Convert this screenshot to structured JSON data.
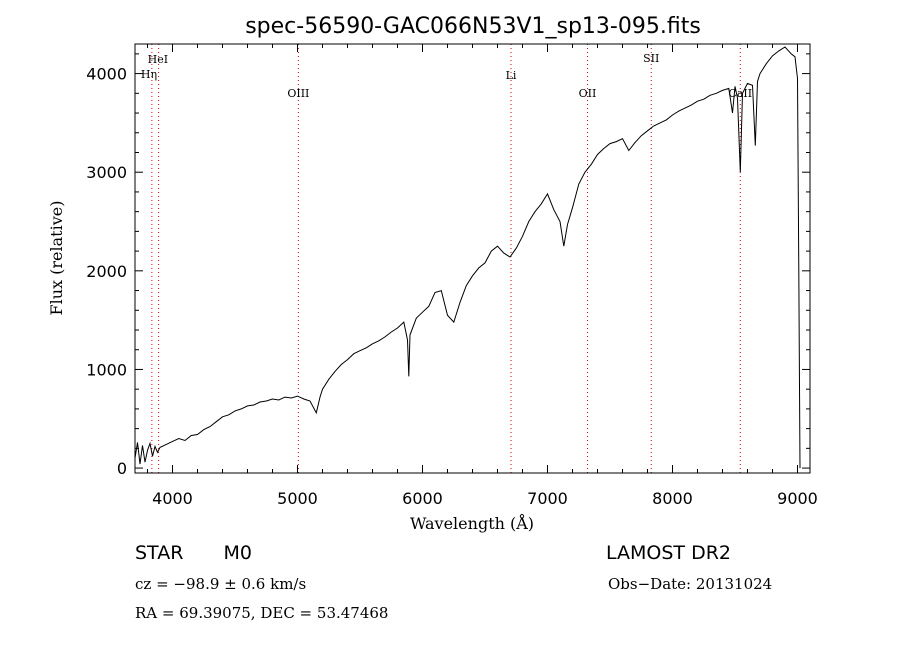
{
  "chart_data": {
    "type": "line",
    "title": "spec-56590-GAC066N53V1_sp13-095.fits",
    "xlabel": "Wavelength (Å)",
    "ylabel": "Flux (relative)",
    "xlim": [
      3700,
      9100
    ],
    "ylim": [
      -50,
      4300
    ],
    "xticks": [
      4000,
      5000,
      6000,
      7000,
      8000,
      9000
    ],
    "yticks": [
      0,
      1000,
      2000,
      3000,
      4000
    ],
    "grid": false,
    "line_color": "#000000",
    "marker_color": "#cc0000",
    "spectral_lines": [
      {
        "name": "HeI",
        "x": 3889
      },
      {
        "name": "Hη",
        "x": 3835
      },
      {
        "name": "OIII",
        "x": 5007
      },
      {
        "name": "Li",
        "x": 6708
      },
      {
        "name": "OII",
        "x": 7320
      },
      {
        "name": "SII",
        "x": 7830
      },
      {
        "name": "CaII",
        "x": 8542
      }
    ],
    "series": [
      {
        "values": [
          [
            3700,
            100
          ],
          [
            3720,
            260
          ],
          [
            3740,
            40
          ],
          [
            3760,
            230
          ],
          [
            3780,
            60
          ],
          [
            3800,
            180
          ],
          [
            3820,
            250
          ],
          [
            3840,
            120
          ],
          [
            3860,
            220
          ],
          [
            3880,
            160
          ],
          [
            3900,
            210
          ],
          [
            3950,
            240
          ],
          [
            4000,
            270
          ],
          [
            4050,
            300
          ],
          [
            4100,
            280
          ],
          [
            4150,
            330
          ],
          [
            4200,
            340
          ],
          [
            4250,
            390
          ],
          [
            4300,
            420
          ],
          [
            4350,
            470
          ],
          [
            4400,
            520
          ],
          [
            4450,
            540
          ],
          [
            4500,
            580
          ],
          [
            4550,
            600
          ],
          [
            4600,
            630
          ],
          [
            4650,
            640
          ],
          [
            4700,
            670
          ],
          [
            4750,
            680
          ],
          [
            4800,
            700
          ],
          [
            4850,
            690
          ],
          [
            4900,
            720
          ],
          [
            4950,
            710
          ],
          [
            5000,
            730
          ],
          [
            5050,
            700
          ],
          [
            5100,
            680
          ],
          [
            5150,
            560
          ],
          [
            5180,
            720
          ],
          [
            5200,
            800
          ],
          [
            5250,
            900
          ],
          [
            5300,
            980
          ],
          [
            5350,
            1050
          ],
          [
            5400,
            1100
          ],
          [
            5450,
            1160
          ],
          [
            5500,
            1190
          ],
          [
            5550,
            1220
          ],
          [
            5600,
            1260
          ],
          [
            5650,
            1290
          ],
          [
            5700,
            1330
          ],
          [
            5750,
            1380
          ],
          [
            5800,
            1420
          ],
          [
            5850,
            1480
          ],
          [
            5880,
            1300
          ],
          [
            5890,
            930
          ],
          [
            5900,
            1350
          ],
          [
            5950,
            1520
          ],
          [
            6000,
            1580
          ],
          [
            6050,
            1640
          ],
          [
            6100,
            1780
          ],
          [
            6150,
            1800
          ],
          [
            6200,
            1550
          ],
          [
            6250,
            1480
          ],
          [
            6300,
            1680
          ],
          [
            6350,
            1850
          ],
          [
            6400,
            1950
          ],
          [
            6450,
            2030
          ],
          [
            6500,
            2080
          ],
          [
            6550,
            2200
          ],
          [
            6600,
            2250
          ],
          [
            6650,
            2180
          ],
          [
            6700,
            2140
          ],
          [
            6750,
            2230
          ],
          [
            6800,
            2350
          ],
          [
            6850,
            2500
          ],
          [
            6900,
            2600
          ],
          [
            6950,
            2680
          ],
          [
            7000,
            2780
          ],
          [
            7050,
            2620
          ],
          [
            7100,
            2500
          ],
          [
            7130,
            2250
          ],
          [
            7160,
            2470
          ],
          [
            7200,
            2640
          ],
          [
            7250,
            2880
          ],
          [
            7300,
            3000
          ],
          [
            7350,
            3080
          ],
          [
            7400,
            3180
          ],
          [
            7450,
            3240
          ],
          [
            7500,
            3290
          ],
          [
            7550,
            3310
          ],
          [
            7600,
            3340
          ],
          [
            7650,
            3220
          ],
          [
            7700,
            3300
          ],
          [
            7750,
            3370
          ],
          [
            7800,
            3420
          ],
          [
            7850,
            3470
          ],
          [
            7900,
            3500
          ],
          [
            7950,
            3530
          ],
          [
            8000,
            3580
          ],
          [
            8050,
            3620
          ],
          [
            8100,
            3650
          ],
          [
            8150,
            3680
          ],
          [
            8200,
            3720
          ],
          [
            8250,
            3740
          ],
          [
            8300,
            3780
          ],
          [
            8350,
            3800
          ],
          [
            8400,
            3830
          ],
          [
            8450,
            3850
          ],
          [
            8480,
            3600
          ],
          [
            8500,
            3870
          ],
          [
            8520,
            3750
          ],
          [
            8542,
            3000
          ],
          [
            8560,
            3800
          ],
          [
            8600,
            3900
          ],
          [
            8640,
            3880
          ],
          [
            8662,
            3270
          ],
          [
            8680,
            3920
          ],
          [
            8700,
            4000
          ],
          [
            8750,
            4100
          ],
          [
            8800,
            4180
          ],
          [
            8850,
            4230
          ],
          [
            8900,
            4270
          ],
          [
            8950,
            4200
          ],
          [
            8980,
            4170
          ],
          [
            9000,
            3950
          ],
          [
            9010,
            2000
          ],
          [
            9020,
            0
          ]
        ]
      }
    ]
  },
  "info": {
    "class_label": "STAR",
    "subclass": "M0",
    "survey": "LAMOST DR2",
    "cz": "cz = −98.9 ± 0.6 km/s",
    "obs_date": "Obs−Date: 20131024",
    "coords": "RA =  69.39075, DEC =  53.47468"
  }
}
